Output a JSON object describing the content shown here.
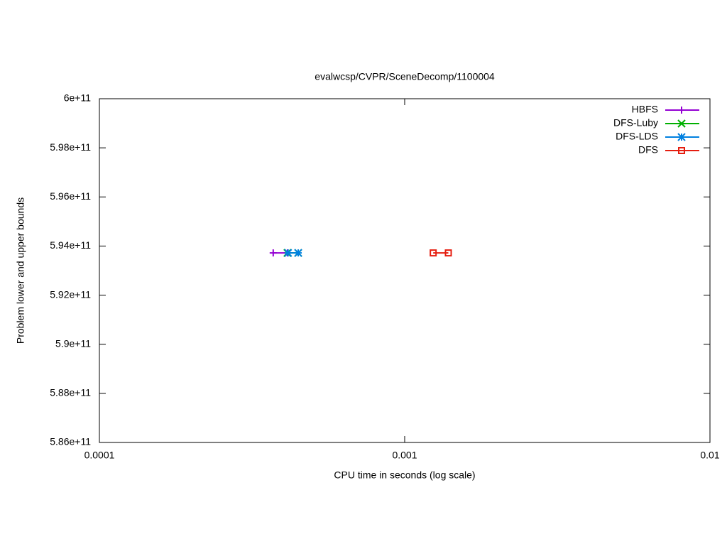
{
  "chart_data": {
    "type": "line",
    "title": "evalwcsp/CVPR/SceneDecomp/1100004",
    "xlabel": "CPU time in seconds (log scale)",
    "ylabel": "Problem lower and upper bounds",
    "xscale": "log",
    "xlim": [
      0.0001,
      0.01
    ],
    "xticks": [
      0.0001,
      0.001,
      0.01
    ],
    "ylim": [
      586000000000,
      600000000000
    ],
    "yticks": [
      {
        "value": 586000000000,
        "label": "5.86e+11"
      },
      {
        "value": 588000000000,
        "label": "5.88e+11"
      },
      {
        "value": 590000000000,
        "label": "5.9e+11"
      },
      {
        "value": 592000000000,
        "label": "5.92e+11"
      },
      {
        "value": 594000000000,
        "label": "5.94e+11"
      },
      {
        "value": 596000000000,
        "label": "5.96e+11"
      },
      {
        "value": 598000000000,
        "label": "5.98e+11"
      },
      {
        "value": 600000000000,
        "label": "6e+11"
      }
    ],
    "legend": "top-right",
    "series": [
      {
        "name": "HBFS",
        "color": "#9400d3",
        "marker": "plus",
        "x": [
          0.000371,
          0.000413
        ],
        "values": [
          593720000000,
          593720000000
        ]
      },
      {
        "name": "DFS-Luby",
        "color": "#00b000",
        "marker": "cross",
        "x": [
          0.000413,
          0.000448
        ],
        "values": [
          593720000000,
          593720000000
        ]
      },
      {
        "name": "DFS-LDS",
        "color": "#0080e0",
        "marker": "star",
        "x": [
          0.000415,
          0.000448
        ],
        "values": [
          593720000000,
          593720000000
        ]
      },
      {
        "name": "DFS",
        "color": "#e51e10",
        "marker": "square",
        "x": [
          0.00124,
          0.00139
        ],
        "values": [
          593720000000,
          593720000000
        ]
      }
    ]
  }
}
